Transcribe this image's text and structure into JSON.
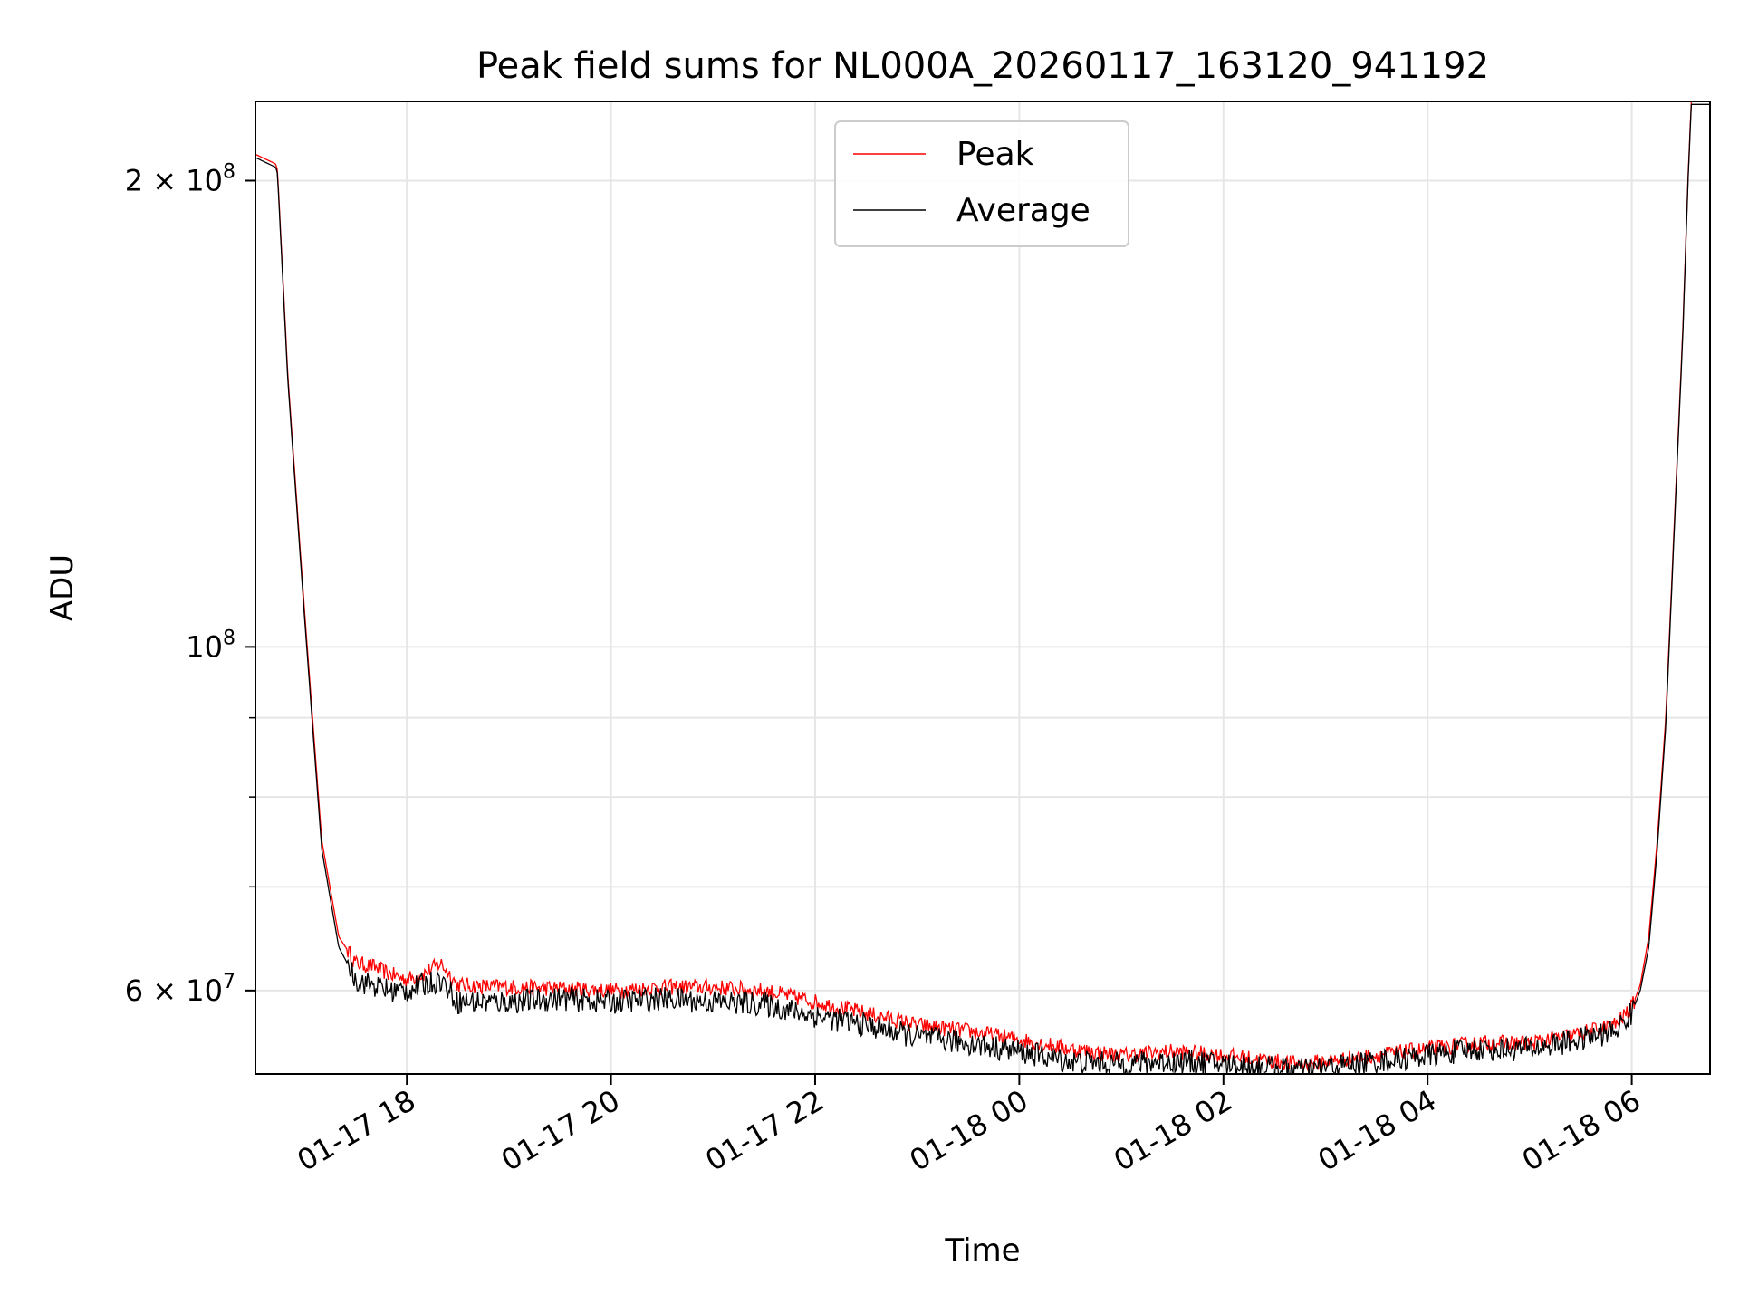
{
  "chart_data": {
    "type": "line",
    "title": "Peak field sums for NL000A_20260117_163120_941192",
    "xlabel": "Time",
    "ylabel": "ADU",
    "yscale": "log",
    "grid": true,
    "legend_position": "top-center",
    "xlim": [
      "2026-01-17 16:31",
      "2026-01-18 06:46"
    ],
    "ylim": [
      53000000,
      225000000
    ],
    "x_ticks": [
      "01-17 18",
      "01-17 20",
      "01-17 22",
      "01-18 00",
      "01-18 02",
      "01-18 04",
      "01-18 06"
    ],
    "y_ticks": [
      {
        "value": 200000000,
        "mantissa": "2",
        "exponent": "8"
      },
      {
        "value": 100000000,
        "mantissa": "",
        "exponent": "8"
      },
      {
        "value": 60000000,
        "mantissa": "6",
        "exponent": "7"
      }
    ],
    "y_minor_ticks": [
      70000000,
      80000000,
      90000000
    ],
    "series": [
      {
        "name": "Peak",
        "color": "#ff0000",
        "noise": 0.012,
        "x": [
          "2026-01-17 16:31",
          "2026-01-17 16:43",
          "2026-01-17 16:44",
          "2026-01-17 16:50",
          "2026-01-17 17:00",
          "2026-01-17 17:10",
          "2026-01-17 17:20",
          "2026-01-17 17:30",
          "2026-01-17 17:40",
          "2026-01-17 17:50",
          "2026-01-17 18:00",
          "2026-01-17 18:10",
          "2026-01-17 18:20",
          "2026-01-17 18:30",
          "2026-01-17 19:00",
          "2026-01-17 19:30",
          "2026-01-17 20:00",
          "2026-01-17 20:30",
          "2026-01-17 21:00",
          "2026-01-17 21:30",
          "2026-01-17 22:00",
          "2026-01-17 22:30",
          "2026-01-17 23:00",
          "2026-01-17 23:30",
          "2026-01-18 00:00",
          "2026-01-18 00:30",
          "2026-01-18 01:00",
          "2026-01-18 01:30",
          "2026-01-18 02:00",
          "2026-01-18 02:30",
          "2026-01-18 02:45",
          "2026-01-18 03:00",
          "2026-01-18 03:30",
          "2026-01-18 04:00",
          "2026-01-18 04:30",
          "2026-01-18 05:00",
          "2026-01-18 05:30",
          "2026-01-18 05:50",
          "2026-01-18 06:00",
          "2026-01-18 06:05",
          "2026-01-18 06:10",
          "2026-01-18 06:15",
          "2026-01-18 06:20",
          "2026-01-18 06:25",
          "2026-01-18 06:30",
          "2026-01-18 06:33",
          "2026-01-18 06:35",
          "2026-01-18 06:46"
        ],
        "y": [
          208000000,
          205000000,
          203000000,
          150000000,
          105000000,
          75000000,
          65000000,
          62500000,
          62200000,
          61500000,
          61000000,
          61500000,
          62500000,
          60500000,
          60300000,
          60200000,
          60000000,
          60300000,
          60300000,
          60000000,
          59000000,
          58000000,
          57000000,
          56500000,
          55800000,
          55000000,
          54500000,
          54800000,
          54500000,
          54000000,
          53800000,
          54000000,
          54500000,
          55000000,
          55500000,
          55500000,
          56300000,
          57000000,
          58500000,
          60500000,
          65000000,
          75000000,
          90000000,
          120000000,
          160000000,
          200000000,
          225000000,
          225000000
        ]
      },
      {
        "name": "Average",
        "color": "#000000",
        "noise": 0.018,
        "x": [
          "2026-01-17 16:31",
          "2026-01-17 16:43",
          "2026-01-17 16:44",
          "2026-01-17 16:50",
          "2026-01-17 17:00",
          "2026-01-17 17:10",
          "2026-01-17 17:20",
          "2026-01-17 17:30",
          "2026-01-17 17:40",
          "2026-01-17 17:50",
          "2026-01-17 18:00",
          "2026-01-17 18:10",
          "2026-01-17 18:20",
          "2026-01-17 18:30",
          "2026-01-17 19:00",
          "2026-01-17 19:30",
          "2026-01-17 20:00",
          "2026-01-17 20:30",
          "2026-01-17 21:00",
          "2026-01-17 21:30",
          "2026-01-17 22:00",
          "2026-01-17 22:30",
          "2026-01-17 23:00",
          "2026-01-17 23:30",
          "2026-01-18 00:00",
          "2026-01-18 00:30",
          "2026-01-18 01:00",
          "2026-01-18 01:30",
          "2026-01-18 02:00",
          "2026-01-18 02:30",
          "2026-01-18 02:45",
          "2026-01-18 03:00",
          "2026-01-18 03:30",
          "2026-01-18 04:00",
          "2026-01-18 04:30",
          "2026-01-18 05:00",
          "2026-01-18 05:30",
          "2026-01-18 05:50",
          "2026-01-18 06:00",
          "2026-01-18 06:05",
          "2026-01-18 06:10",
          "2026-01-18 06:15",
          "2026-01-18 06:20",
          "2026-01-18 06:25",
          "2026-01-18 06:30",
          "2026-01-18 06:33",
          "2026-01-18 06:35",
          "2026-01-18 06:46"
        ],
        "y": [
          207000000,
          204000000,
          202000000,
          149000000,
          104000000,
          74000000,
          64000000,
          61000000,
          60500000,
          60000000,
          60000000,
          60500000,
          61000000,
          59000000,
          59000000,
          59300000,
          59000000,
          59300000,
          59000000,
          58800000,
          57800000,
          57000000,
          56000000,
          55500000,
          54800000,
          54000000,
          53800000,
          54000000,
          53800000,
          53500000,
          53300000,
          53500000,
          54000000,
          54500000,
          55000000,
          55000000,
          55800000,
          56500000,
          58000000,
          60000000,
          64000000,
          74000000,
          89000000,
          119000000,
          159000000,
          199000000,
          224000000,
          224000000
        ]
      }
    ]
  }
}
